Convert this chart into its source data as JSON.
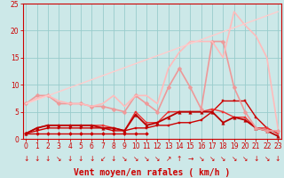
{
  "xlabel": "Vent moyen/en rafales ( km/h )",
  "xlim": [
    -0.3,
    23.3
  ],
  "ylim": [
    0,
    25
  ],
  "xticks": [
    0,
    1,
    2,
    3,
    4,
    5,
    6,
    7,
    8,
    9,
    10,
    11,
    12,
    13,
    14,
    15,
    16,
    17,
    18,
    19,
    20,
    21,
    22,
    23
  ],
  "yticks": [
    0,
    5,
    10,
    15,
    20,
    25
  ],
  "bg_color": "#cce8e8",
  "grid_color": "#99cccc",
  "series": [
    {
      "x": [
        0,
        1,
        2,
        3,
        4,
        5,
        6,
        7,
        8,
        9,
        10,
        11
      ],
      "y": [
        1,
        1,
        1,
        1,
        1,
        1,
        1,
        1,
        1,
        1,
        1,
        1
      ],
      "color": "#cc0000",
      "lw": 1.0,
      "marker": "D",
      "ms": 2.0
    },
    {
      "x": [
        0,
        1,
        2,
        3,
        4,
        5,
        6,
        7,
        8,
        9,
        10,
        11,
        12,
        13,
        14,
        15,
        16,
        17,
        18,
        19,
        20,
        21,
        22,
        23
      ],
      "y": [
        1,
        1.5,
        2,
        2,
        2,
        2,
        2,
        2,
        1.5,
        1.5,
        2,
        2,
        2.5,
        2.5,
        3,
        3,
        3.5,
        5,
        7,
        7,
        7,
        4,
        2,
        1
      ],
      "color": "#cc0000",
      "lw": 1.0,
      "marker": "s",
      "ms": 2.0
    },
    {
      "x": [
        0,
        1,
        2,
        3,
        4,
        5,
        6,
        7,
        8,
        9,
        10,
        11,
        12,
        13,
        14,
        15,
        16,
        17,
        18,
        19,
        20,
        21,
        22,
        23
      ],
      "y": [
        1,
        2,
        2.5,
        2.5,
        2.5,
        2.5,
        2.5,
        2.5,
        2,
        1.5,
        5,
        3,
        3,
        5,
        5,
        5,
        5,
        5.5,
        5,
        4,
        4,
        2,
        2,
        1
      ],
      "color": "#ee3333",
      "lw": 1.0,
      "marker": "s",
      "ms": 2.0
    },
    {
      "x": [
        0,
        1,
        2,
        3,
        4,
        5,
        6,
        7,
        8,
        9,
        10,
        11,
        12,
        13,
        14,
        15,
        16,
        17,
        18,
        19,
        20,
        21,
        22,
        23
      ],
      "y": [
        1,
        2,
        2.5,
        2.5,
        2.5,
        2.5,
        2.5,
        2,
        2,
        1.5,
        4.5,
        2.5,
        3,
        4,
        5,
        5,
        5,
        5,
        3,
        4,
        3.5,
        2,
        1.5,
        0.5
      ],
      "color": "#bb0000",
      "lw": 1.3,
      "marker": "^",
      "ms": 2.5
    },
    {
      "x": [
        0,
        1,
        2,
        3,
        4,
        5,
        6,
        7,
        8,
        9,
        10,
        11,
        12,
        13,
        14,
        15,
        16,
        17,
        18,
        19,
        20,
        21,
        22,
        23
      ],
      "y": [
        6.5,
        8,
        8,
        6.5,
        6.5,
        6.5,
        6,
        6,
        5.5,
        5,
        8,
        6.5,
        5,
        9.5,
        13,
        9.5,
        5.5,
        18,
        18,
        9.5,
        5,
        2,
        1.5,
        1.5
      ],
      "color": "#ee9999",
      "lw": 1.2,
      "marker": "D",
      "ms": 2.5
    },
    {
      "x": [
        0,
        1,
        2,
        3,
        4,
        5,
        6,
        7,
        8,
        9,
        10,
        11,
        12,
        13,
        14,
        15,
        16,
        17,
        18,
        19,
        20,
        21,
        22,
        23
      ],
      "y": [
        6.5,
        7.5,
        8,
        7,
        6.5,
        6.5,
        6,
        6.5,
        8,
        6,
        8,
        8,
        6.5,
        13,
        16,
        18,
        18,
        18,
        15,
        23.5,
        21,
        19,
        15,
        2
      ],
      "color": "#ffbbbb",
      "lw": 1.2,
      "marker": null,
      "ms": 0
    },
    {
      "x": [
        0,
        23
      ],
      "y": [
        6.5,
        23.5
      ],
      "color": "#ffcccc",
      "lw": 1.0,
      "marker": null,
      "ms": 0
    }
  ],
  "arrow_symbols": [
    "↓",
    "↓",
    "↓",
    "↘",
    "↓",
    "↓",
    "↓",
    "↙",
    "↓",
    "↘",
    "↘",
    "↘",
    "↘",
    "↗",
    "↑",
    "→",
    "↘",
    "↘",
    "↘",
    "↘",
    "↘",
    "↓",
    "↘",
    "↓"
  ],
  "xlabel_color": "#cc0000",
  "tick_color": "#cc0000",
  "axis_color": "#cc0000",
  "tick_fontsize": 5.5,
  "arrow_fontsize": 5.5,
  "xlabel_fontsize": 7.0
}
